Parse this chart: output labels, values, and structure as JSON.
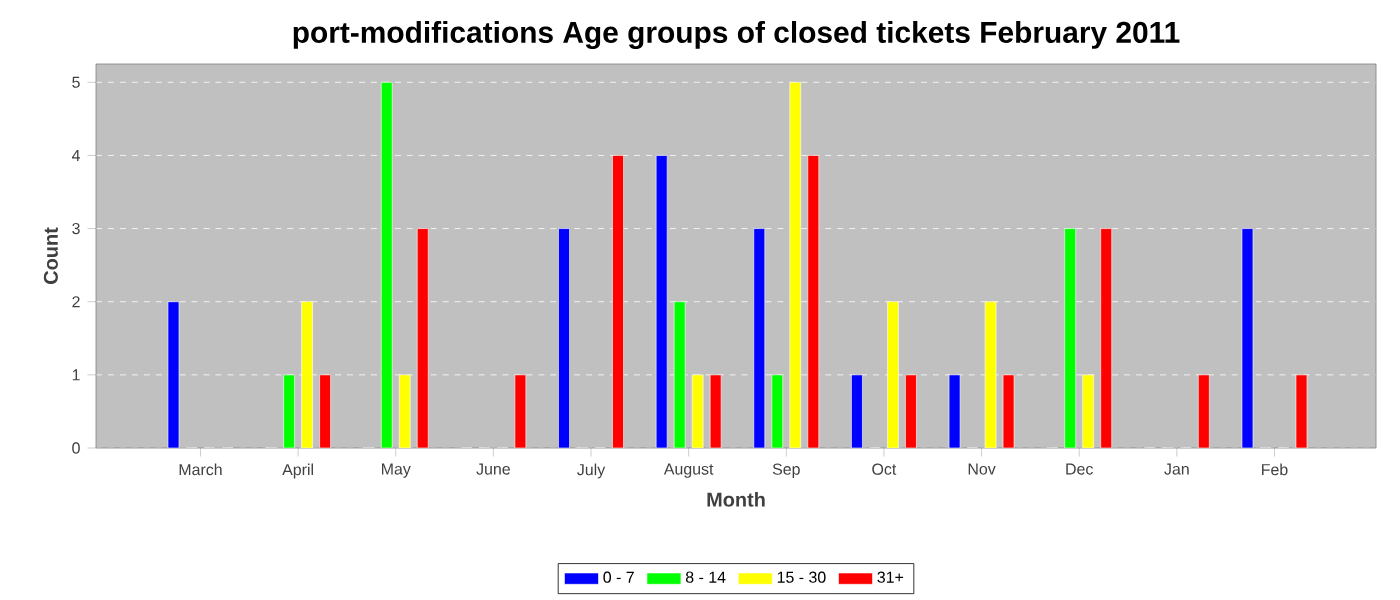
{
  "chart_data": {
    "type": "bar",
    "title": "port-modifications Age groups of closed tickets February 2011",
    "xlabel": "Month",
    "ylabel": "Count",
    "categories": [
      "March",
      "April",
      "May",
      "June",
      "July",
      "August",
      "Sep",
      "Oct",
      "Nov",
      "Dec",
      "Jan",
      "Feb"
    ],
    "series": [
      {
        "name": "0 - 7",
        "color": "#0000ff",
        "values": [
          2,
          0,
          0,
          0,
          3,
          4,
          3,
          1,
          1,
          0,
          0,
          3
        ]
      },
      {
        "name": "8 - 14",
        "color": "#00ff00",
        "values": [
          0,
          1,
          5,
          0,
          0,
          2,
          1,
          0,
          0,
          3,
          0,
          0
        ]
      },
      {
        "name": "15 - 30",
        "color": "#ffff00",
        "values": [
          0,
          2,
          1,
          0,
          0,
          1,
          5,
          2,
          2,
          1,
          0,
          0
        ]
      },
      {
        "name": "31+",
        "color": "#ff0000",
        "values": [
          0,
          1,
          3,
          1,
          4,
          1,
          4,
          1,
          1,
          3,
          1,
          1
        ]
      }
    ],
    "ylim": [
      0,
      5.25
    ],
    "yticks": [
      0,
      1,
      2,
      3,
      4,
      5
    ],
    "grid": "y",
    "legend": "bottom"
  }
}
